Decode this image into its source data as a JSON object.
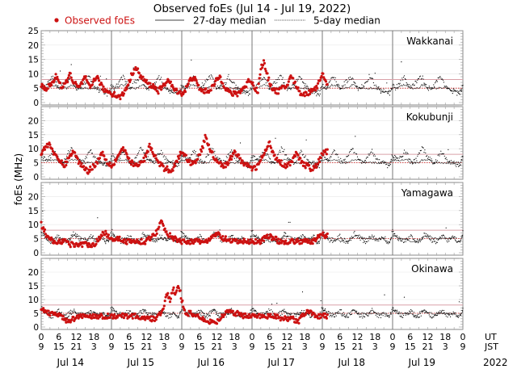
{
  "chart_data": {
    "type": "scatter",
    "title": "Observed foEs (Jul 14 - Jul 19, 2022)",
    "ylabel": "foEs (MHz)",
    "ylim": [
      0,
      25
    ],
    "xlim_hours": [
      0,
      144
    ],
    "legend": {
      "placement": "top",
      "entries": [
        {
          "label": "Observed foEs",
          "style": "dot",
          "color": "#cc1111"
        },
        {
          "label": "27-day median",
          "style": "solid",
          "color": "#000000"
        },
        {
          "label": "5-day median",
          "style": "dotted",
          "color": "#000000"
        }
      ]
    },
    "y_ticks": [
      0,
      5,
      10,
      15,
      20,
      25
    ],
    "y_ticks_other_panels": [
      0,
      5,
      10,
      15,
      20
    ],
    "x_ut_ticks": [
      "0",
      "6",
      "12",
      "18",
      "0",
      "6",
      "12",
      "18",
      "0",
      "6",
      "12",
      "18",
      "0",
      "6",
      "12",
      "18",
      "0",
      "6",
      "12",
      "18",
      "0",
      "6",
      "12",
      "18",
      "0"
    ],
    "x_jst_ticks": [
      "9",
      "15",
      "21",
      "3",
      "9",
      "15",
      "21",
      "3",
      "9",
      "15",
      "21",
      "3",
      "9",
      "15",
      "21",
      "3",
      "9",
      "15",
      "21",
      "3",
      "9",
      "15",
      "21",
      "3",
      "9"
    ],
    "ut_label": "UT",
    "jst_label": "JST",
    "days": [
      "Jul 14",
      "Jul 15",
      "Jul 16",
      "Jul 17",
      "Jul 18",
      "Jul 19"
    ],
    "year": "2022",
    "reference_lines": {
      "upper_MHz": 8,
      "lower_MHz": 5,
      "upper_color": "#d9a0a8",
      "lower_color": "#cc1111"
    },
    "observed_end_hour": 98,
    "panels": [
      {
        "station": "Wakkanai",
        "observed_hourly": [
          6,
          5,
          5,
          6,
          7,
          9,
          8,
          5,
          6,
          8,
          10,
          7,
          6,
          5,
          7,
          9,
          6,
          5,
          8,
          9,
          7,
          5,
          4,
          4,
          3,
          3,
          2,
          2,
          3,
          5,
          7,
          10,
          12,
          11,
          9,
          8,
          7,
          6,
          6,
          5,
          4,
          5,
          6,
          8,
          7,
          5,
          4,
          4,
          3,
          4,
          6,
          8,
          9,
          7,
          5,
          4,
          4,
          4,
          5,
          6,
          8,
          9,
          7,
          5,
          4,
          3,
          3,
          3,
          4,
          5,
          6,
          8,
          7,
          5,
          4,
          12,
          14,
          10,
          7,
          5,
          4,
          4,
          5,
          5,
          6,
          9,
          8,
          6,
          4,
          3,
          3,
          3,
          4,
          5,
          5,
          8,
          10,
          7
        ],
        "median27_hourly": [
          5,
          5,
          5,
          6,
          6,
          6,
          5,
          5,
          5,
          5,
          6,
          6,
          5,
          5,
          5,
          5,
          5,
          5,
          5,
          5,
          4,
          4,
          4,
          4,
          4
        ],
        "median5_hourly": [
          6,
          5,
          6,
          8,
          9,
          7,
          5,
          6,
          7,
          8,
          9,
          7,
          5,
          5,
          6,
          7,
          9,
          8,
          6,
          5,
          4,
          4,
          3,
          3,
          4
        ]
      },
      {
        "station": "Kokubunji",
        "observed_hourly": [
          8,
          10,
          11,
          12,
          9,
          7,
          6,
          5,
          4,
          6,
          8,
          9,
          7,
          5,
          4,
          3,
          2,
          3,
          4,
          5,
          7,
          9,
          6,
          5,
          4,
          5,
          7,
          9,
          10,
          8,
          6,
          5,
          4,
          4,
          5,
          6,
          8,
          11,
          9,
          7,
          5,
          4,
          3,
          3,
          2,
          3,
          5,
          7,
          9,
          8,
          6,
          5,
          5,
          6,
          8,
          10,
          14,
          12,
          9,
          7,
          6,
          5,
          4,
          4,
          5,
          7,
          9,
          8,
          6,
          5,
          4,
          4,
          3,
          3,
          4,
          6,
          8,
          10,
          12,
          9,
          7,
          6,
          5,
          4,
          4,
          5,
          6,
          8,
          7,
          5,
          4,
          4,
          3,
          3,
          4,
          6,
          8,
          9
        ],
        "median27_hourly": [
          6,
          6,
          6,
          6,
          6,
          6,
          5,
          5,
          5,
          5,
          6,
          6,
          6,
          6,
          5,
          5,
          5,
          5,
          5,
          5,
          5,
          5,
          5,
          5,
          5
        ],
        "median5_hourly": [
          8,
          7,
          6,
          7,
          9,
          8,
          6,
          5,
          6,
          8,
          10,
          9,
          7,
          6,
          5,
          6,
          8,
          9,
          7,
          6,
          5,
          5,
          4,
          4,
          5
        ]
      },
      {
        "station": "Yamagawa",
        "observed_hourly": [
          10,
          8,
          6,
          5,
          4,
          4,
          4,
          4,
          4,
          4,
          3,
          3,
          3,
          3,
          3,
          3,
          3,
          3,
          3,
          4,
          5,
          7,
          7,
          6,
          5,
          5,
          5,
          5,
          4,
          4,
          4,
          4,
          4,
          4,
          4,
          4,
          4,
          5,
          6,
          7,
          8,
          12,
          9,
          7,
          6,
          5,
          5,
          4,
          4,
          4,
          4,
          4,
          4,
          4,
          4,
          4,
          4,
          4,
          5,
          6,
          7,
          6,
          5,
          5,
          4,
          4,
          4,
          4,
          4,
          4,
          4,
          4,
          4,
          4,
          4,
          4,
          5,
          6,
          6,
          5,
          5,
          4,
          4,
          4,
          4,
          4,
          4,
          4,
          4,
          4,
          4,
          4,
          4,
          4,
          5,
          6,
          7,
          6
        ],
        "median27_hourly": [
          6,
          6,
          5,
          5,
          5,
          5,
          4,
          4,
          4,
          4,
          5,
          6,
          6,
          6,
          5,
          5,
          5,
          5,
          5,
          5,
          5,
          5,
          4,
          4,
          4
        ],
        "median5_hourly": [
          8,
          6,
          5,
          4,
          4,
          5,
          6,
          5,
          4,
          4,
          5,
          7,
          6,
          5,
          4,
          4,
          5,
          6,
          5,
          4,
          5,
          6,
          4,
          4,
          5
        ]
      },
      {
        "station": "Okinawa",
        "observed_hourly": [
          7,
          6,
          5,
          5,
          5,
          5,
          4,
          4,
          3,
          2,
          2,
          3,
          3,
          4,
          4,
          4,
          4,
          4,
          4,
          4,
          4,
          4,
          4,
          4,
          4,
          4,
          4,
          4,
          4,
          4,
          4,
          4,
          4,
          4,
          3,
          3,
          3,
          3,
          3,
          3,
          4,
          5,
          8,
          12,
          10,
          14,
          12,
          15,
          10,
          6,
          5,
          5,
          4,
          4,
          4,
          3,
          3,
          2,
          2,
          2,
          2,
          3,
          4,
          5,
          6,
          6,
          5,
          5,
          5,
          4,
          4,
          4,
          4,
          4,
          4,
          4,
          4,
          4,
          4,
          4,
          4,
          4,
          3,
          3,
          3,
          3,
          3,
          2,
          2,
          4,
          5,
          6,
          5,
          5,
          4,
          4,
          4,
          4
        ],
        "median27_hourly": [
          6,
          6,
          5,
          5,
          5,
          5,
          5,
          4,
          4,
          5,
          6,
          6,
          5,
          5,
          5,
          5,
          5,
          5,
          5,
          5,
          5,
          5,
          4,
          4,
          4
        ],
        "median5_hourly": [
          7,
          6,
          5,
          4,
          4,
          5,
          6,
          5,
          4,
          4,
          5,
          6,
          5,
          4,
          4,
          4,
          5,
          6,
          5,
          4,
          4,
          5,
          4,
          4,
          5
        ]
      }
    ]
  }
}
